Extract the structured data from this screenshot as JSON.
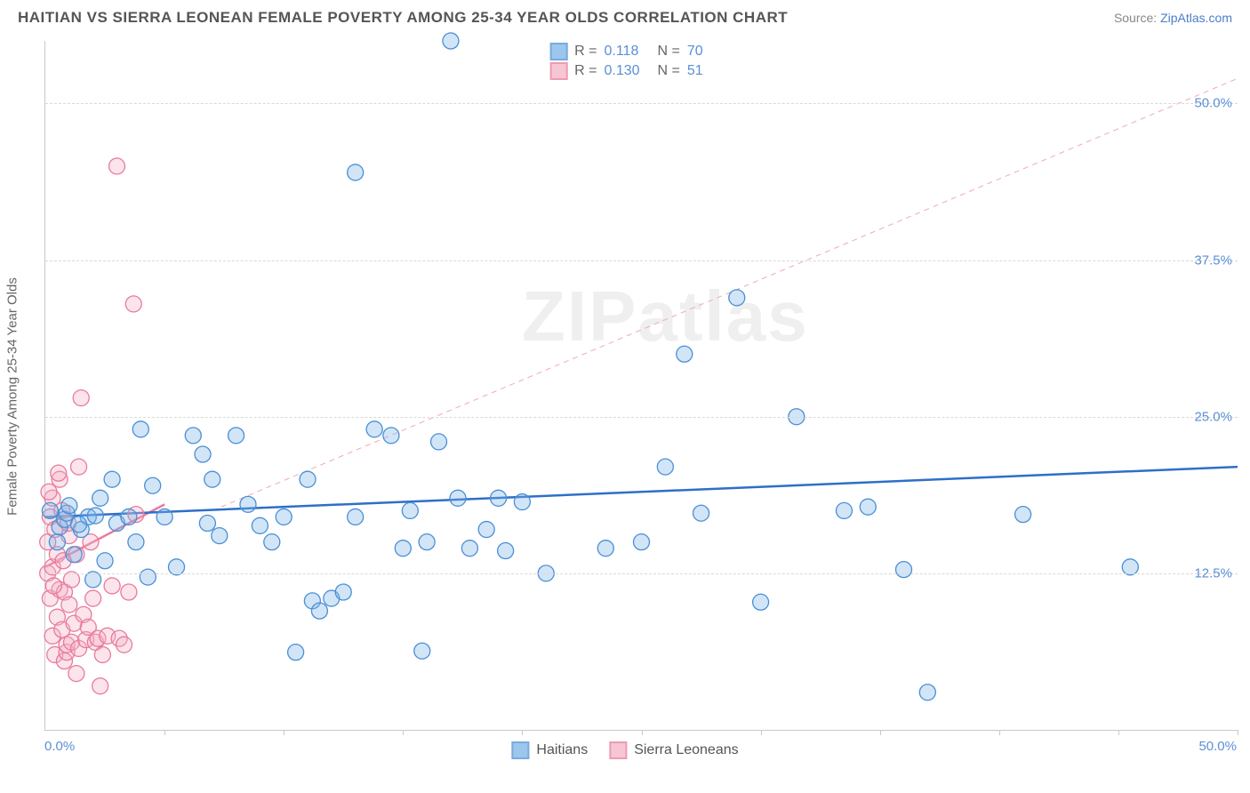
{
  "title": "HAITIAN VS SIERRA LEONEAN FEMALE POVERTY AMONG 25-34 YEAR OLDS CORRELATION CHART",
  "source_label": "Source:",
  "source_name": "ZipAtlas.com",
  "ylabel": "Female Poverty Among 25-34 Year Olds",
  "watermark": "ZIPatlas",
  "chart": {
    "type": "scatter",
    "background_color": "#ffffff",
    "grid_color": "#d9d9d9",
    "axis_color": "#c9c9c9",
    "xlim": [
      0,
      50
    ],
    "ylim": [
      0,
      55
    ],
    "x_tick_step": 5,
    "y_grid_values": [
      12.5,
      25.0,
      37.5,
      50.0
    ],
    "x_labels": [
      {
        "v": 0,
        "t": "0.0%"
      },
      {
        "v": 50,
        "t": "50.0%"
      }
    ],
    "y_labels": [
      {
        "v": 12.5,
        "t": "12.5%"
      },
      {
        "v": 25.0,
        "t": "25.0%"
      },
      {
        "v": 37.5,
        "t": "37.5%"
      },
      {
        "v": 50.0,
        "t": "50.0%"
      }
    ],
    "marker_radius": 9,
    "marker_fill_opacity": 0.35,
    "series": [
      {
        "id": "haitians",
        "label": "Haitians",
        "color_stroke": "#4a8fd6",
        "color_fill": "#7db4e8",
        "r": "0.118",
        "n": "70",
        "trend": {
          "x1": 0,
          "y1": 17.0,
          "x2": 50,
          "y2": 21.0,
          "width": 2.5,
          "dash": "none"
        },
        "proj": {
          "x1": 7,
          "y1": 17.5,
          "x2": 50,
          "y2": 52.0,
          "width": 1,
          "dash": "6 5",
          "color": "#f2a7b8"
        },
        "points": [
          [
            0.2,
            17.5
          ],
          [
            0.5,
            15.0
          ],
          [
            0.6,
            16.2
          ],
          [
            0.8,
            16.8
          ],
          [
            0.9,
            17.3
          ],
          [
            1.2,
            14.0
          ],
          [
            1.5,
            16.0
          ],
          [
            1.8,
            17.0
          ],
          [
            2.0,
            12.0
          ],
          [
            2.3,
            18.5
          ],
          [
            2.5,
            13.5
          ],
          [
            2.8,
            20.0
          ],
          [
            3.0,
            16.5
          ],
          [
            3.5,
            17.0
          ],
          [
            3.8,
            15.0
          ],
          [
            4.0,
            24.0
          ],
          [
            4.3,
            12.2
          ],
          [
            4.5,
            19.5
          ],
          [
            5.0,
            17.0
          ],
          [
            5.5,
            13.0
          ],
          [
            6.2,
            23.5
          ],
          [
            6.6,
            22.0
          ],
          [
            6.8,
            16.5
          ],
          [
            7.0,
            20.0
          ],
          [
            7.3,
            15.5
          ],
          [
            8.0,
            23.5
          ],
          [
            8.5,
            18.0
          ],
          [
            9.0,
            16.3
          ],
          [
            9.5,
            15.0
          ],
          [
            10.0,
            17.0
          ],
          [
            10.5,
            6.2
          ],
          [
            11.0,
            20.0
          ],
          [
            11.2,
            10.3
          ],
          [
            11.5,
            9.5
          ],
          [
            12.0,
            10.5
          ],
          [
            12.5,
            11.0
          ],
          [
            13.0,
            17.0
          ],
          [
            13.0,
            44.5
          ],
          [
            13.8,
            24.0
          ],
          [
            14.5,
            23.5
          ],
          [
            15.0,
            14.5
          ],
          [
            15.3,
            17.5
          ],
          [
            15.8,
            6.3
          ],
          [
            16.0,
            15.0
          ],
          [
            16.5,
            23.0
          ],
          [
            17.0,
            55.0
          ],
          [
            17.3,
            18.5
          ],
          [
            17.8,
            14.5
          ],
          [
            18.5,
            16.0
          ],
          [
            19.0,
            18.5
          ],
          [
            19.3,
            14.3
          ],
          [
            20.0,
            18.2
          ],
          [
            21.0,
            12.5
          ],
          [
            23.5,
            14.5
          ],
          [
            25.0,
            15.0
          ],
          [
            26.0,
            21.0
          ],
          [
            26.8,
            30.0
          ],
          [
            27.5,
            17.3
          ],
          [
            29.0,
            34.5
          ],
          [
            30.0,
            10.2
          ],
          [
            31.5,
            25.0
          ],
          [
            33.5,
            17.5
          ],
          [
            34.5,
            17.8
          ],
          [
            36.0,
            12.8
          ],
          [
            37.0,
            3.0
          ],
          [
            41.0,
            17.2
          ],
          [
            45.5,
            13.0
          ],
          [
            1.0,
            17.9
          ],
          [
            1.4,
            16.4
          ],
          [
            2.1,
            17.1
          ]
        ]
      },
      {
        "id": "sierra_leoneans",
        "label": "Sierra Leoneans",
        "color_stroke": "#e97a9b",
        "color_fill": "#f4b3c6",
        "r": "0.130",
        "n": "51",
        "trend": {
          "x1": 0,
          "y1": 13.0,
          "x2": 5.0,
          "y2": 18.0,
          "width": 2.5,
          "dash": "none"
        },
        "points": [
          [
            0.1,
            12.5
          ],
          [
            0.1,
            15.0
          ],
          [
            0.2,
            17.0
          ],
          [
            0.2,
            10.5
          ],
          [
            0.3,
            13.0
          ],
          [
            0.3,
            18.5
          ],
          [
            0.3,
            7.5
          ],
          [
            0.4,
            6.0
          ],
          [
            0.4,
            16.0
          ],
          [
            0.5,
            14.0
          ],
          [
            0.5,
            9.0
          ],
          [
            0.6,
            11.2
          ],
          [
            0.6,
            20.0
          ],
          [
            0.7,
            8.0
          ],
          [
            0.7,
            17.5
          ],
          [
            0.8,
            11.0
          ],
          [
            0.8,
            5.5
          ],
          [
            0.9,
            6.2
          ],
          [
            0.9,
            6.8
          ],
          [
            1.0,
            15.5
          ],
          [
            1.0,
            10.0
          ],
          [
            1.1,
            7.0
          ],
          [
            1.1,
            12.0
          ],
          [
            1.2,
            8.5
          ],
          [
            1.3,
            4.5
          ],
          [
            1.3,
            14.0
          ],
          [
            1.4,
            6.5
          ],
          [
            1.4,
            21.0
          ],
          [
            1.5,
            26.5
          ],
          [
            1.6,
            9.2
          ],
          [
            1.7,
            7.2
          ],
          [
            1.8,
            8.2
          ],
          [
            1.9,
            15.0
          ],
          [
            2.0,
            10.5
          ],
          [
            2.1,
            7.0
          ],
          [
            2.2,
            7.3
          ],
          [
            2.3,
            3.5
          ],
          [
            2.4,
            6.0
          ],
          [
            2.6,
            7.5
          ],
          [
            2.8,
            11.5
          ],
          [
            3.0,
            45.0
          ],
          [
            3.1,
            7.3
          ],
          [
            3.3,
            6.8
          ],
          [
            3.5,
            11.0
          ],
          [
            3.7,
            34.0
          ],
          [
            3.8,
            17.2
          ],
          [
            0.15,
            19.0
          ],
          [
            0.35,
            11.5
          ],
          [
            0.55,
            20.5
          ],
          [
            0.75,
            13.5
          ],
          [
            0.95,
            16.5
          ]
        ]
      }
    ]
  },
  "legend_top_label_r": "R  =",
  "legend_top_label_n": "N  =",
  "tick_label_color": "#5b8fd6",
  "title_color": "#555555",
  "label_color": "#666666"
}
